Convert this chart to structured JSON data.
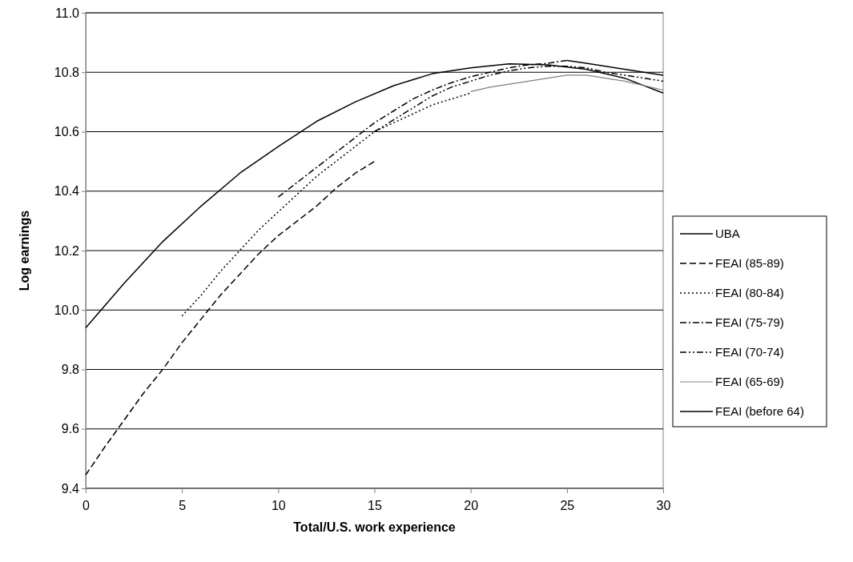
{
  "chart_data": {
    "type": "line",
    "xlabel": "Total/U.S. work experience",
    "ylabel": "Log earnings",
    "xlim": [
      0,
      30
    ],
    "xticks": [
      0,
      5,
      10,
      15,
      20,
      25,
      30
    ],
    "ylim": [
      9.4,
      11.0
    ],
    "yticks": [
      {
        "value": 9.4,
        "label": "9.4"
      },
      {
        "value": 9.6,
        "label": "9.6"
      },
      {
        "value": 9.8,
        "label": "9.8"
      },
      {
        "value": 10.0,
        "label": "10.0"
      },
      {
        "value": 10.2,
        "label": "10.2"
      },
      {
        "value": 10.4,
        "label": "10.4"
      },
      {
        "value": 10.6,
        "label": "10.6"
      },
      {
        "value": 10.8,
        "label": "10.8"
      },
      {
        "value": 11.0,
        "label": "11.0"
      }
    ],
    "grid": "y",
    "legend": "right",
    "marker": "none",
    "series": [
      {
        "name": "UBA",
        "color": "#000000",
        "line_style": "solid",
        "x": [
          0,
          2,
          4,
          6,
          8,
          10,
          12,
          14,
          16,
          18,
          20,
          22,
          24,
          26,
          28,
          30
        ],
        "values": [
          9.94,
          10.09,
          10.23,
          10.35,
          10.46,
          10.55,
          10.635,
          10.7,
          10.755,
          10.795,
          10.815,
          10.828,
          10.825,
          10.81,
          10.78,
          10.73
        ]
      },
      {
        "name": "FEAI (85-89)",
        "color": "#000000",
        "line_style": "dashed",
        "x": [
          0,
          1,
          2,
          3,
          4,
          5,
          6,
          7,
          8,
          9,
          10,
          11,
          12,
          13,
          14,
          15
        ],
        "values": [
          9.445,
          9.54,
          9.63,
          9.72,
          9.8,
          9.89,
          9.97,
          10.05,
          10.12,
          10.19,
          10.25,
          10.3,
          10.35,
          10.41,
          10.46,
          10.5
        ]
      },
      {
        "name": "FEAI (80-84)",
        "color": "#000000",
        "line_style": "dotted",
        "x": [
          5,
          6,
          7,
          8,
          9,
          10,
          11,
          12,
          13,
          14,
          15,
          16,
          17,
          18,
          19,
          20
        ],
        "values": [
          9.98,
          10.05,
          10.13,
          10.2,
          10.27,
          10.33,
          10.39,
          10.45,
          10.5,
          10.55,
          10.6,
          10.63,
          10.66,
          10.69,
          10.71,
          10.73
        ]
      },
      {
        "name": "FEAI (75-79)",
        "color": "#000000",
        "line_style": "dashdot",
        "x": [
          10,
          11,
          12,
          13,
          14,
          15,
          16,
          17,
          18,
          19,
          20,
          21,
          22,
          23,
          24,
          25
        ],
        "values": [
          10.38,
          10.43,
          10.48,
          10.53,
          10.58,
          10.63,
          10.67,
          10.71,
          10.74,
          10.765,
          10.785,
          10.8,
          10.815,
          10.825,
          10.83,
          10.84
        ]
      },
      {
        "name": "FEAI (70-74)",
        "color": "#000000",
        "line_style": "dashdotdot",
        "x": [
          15,
          16,
          17,
          18,
          19,
          20,
          21,
          22,
          23,
          24,
          25,
          26,
          27,
          28,
          29,
          30
        ],
        "values": [
          10.6,
          10.64,
          10.68,
          10.72,
          10.75,
          10.77,
          10.79,
          10.805,
          10.815,
          10.82,
          10.82,
          10.815,
          10.8,
          10.79,
          10.78,
          10.77
        ]
      },
      {
        "name": "FEAI (65-69)",
        "color": "#808080",
        "line_style": "solid",
        "x": [
          20,
          21,
          22,
          23,
          24,
          25,
          26,
          27,
          28,
          29,
          30
        ],
        "values": [
          10.735,
          10.75,
          10.76,
          10.77,
          10.78,
          10.79,
          10.79,
          10.78,
          10.77,
          10.755,
          10.74
        ]
      },
      {
        "name": "FEAI (before 64)",
        "color": "#000000",
        "line_style": "solid",
        "x": [
          25,
          26,
          27,
          28,
          29,
          30
        ],
        "values": [
          10.84,
          10.83,
          10.82,
          10.81,
          10.8,
          10.79
        ]
      }
    ]
  }
}
